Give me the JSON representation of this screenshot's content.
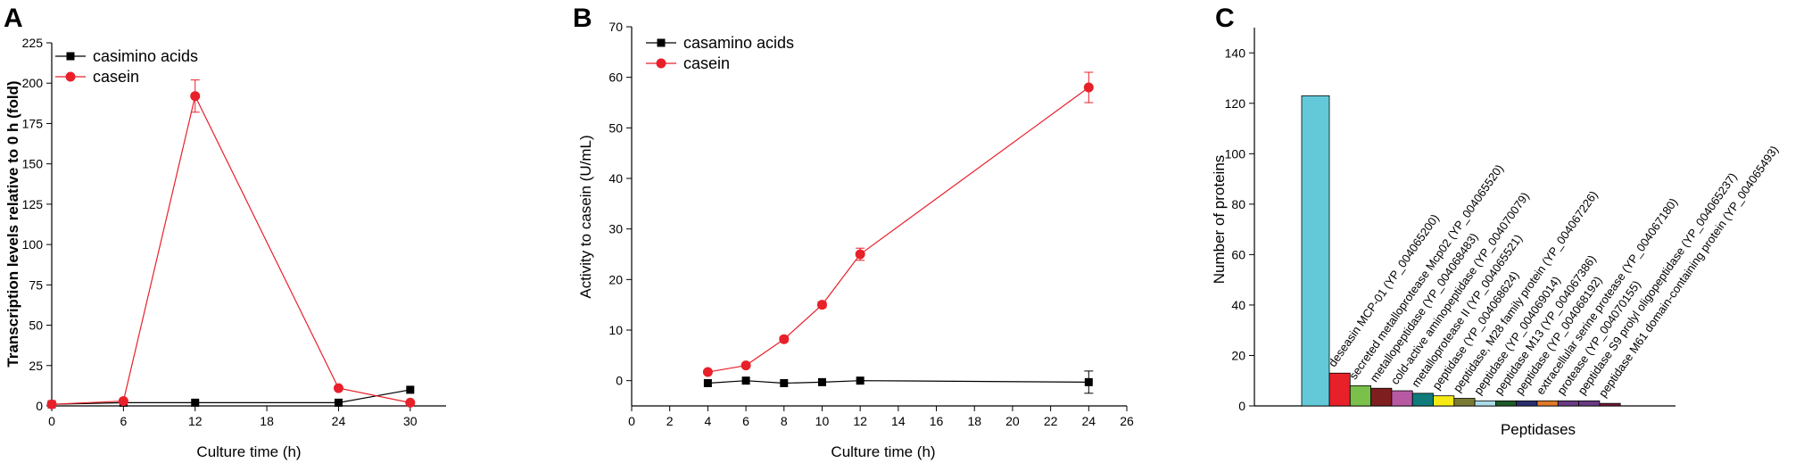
{
  "chart_data": [
    {
      "panel": "A",
      "type": "line",
      "xlabel": "Culture time (h)",
      "ylabel": "Transcription levels relative to 0 h (fold)",
      "xlim": [
        0,
        33
      ],
      "ylim": [
        0,
        225
      ],
      "xticks": [
        0,
        6,
        12,
        18,
        24,
        30
      ],
      "yticks": [
        0,
        25,
        50,
        75,
        100,
        125,
        150,
        175,
        200,
        225
      ],
      "legend_position": "top-left",
      "series": [
        {
          "name": "casimino acids",
          "color": "#000000",
          "marker": "square",
          "x": [
            0,
            6,
            12,
            24,
            30
          ],
          "y": [
            1,
            2,
            2,
            2,
            10
          ],
          "err": [
            0,
            0,
            0,
            0,
            0
          ]
        },
        {
          "name": "casein",
          "color": "#e8202a",
          "marker": "circle",
          "x": [
            0,
            6,
            12,
            24,
            30
          ],
          "y": [
            1,
            3,
            192,
            11,
            2
          ],
          "err": [
            0,
            0,
            10,
            0,
            0
          ]
        }
      ]
    },
    {
      "panel": "B",
      "type": "line",
      "xlabel": "Culture time (h)",
      "ylabel": "Activity to casein (U/mL)",
      "xlim": [
        0,
        26
      ],
      "ylim": [
        -5,
        70
      ],
      "xticks": [
        0,
        2,
        4,
        6,
        8,
        10,
        12,
        14,
        16,
        18,
        20,
        22,
        24,
        26
      ],
      "yticks": [
        0,
        10,
        20,
        30,
        40,
        50,
        60,
        70
      ],
      "legend_position": "top-left",
      "series": [
        {
          "name": "casamino acids",
          "color": "#000000",
          "marker": "square",
          "x": [
            4,
            6,
            8,
            10,
            12,
            24
          ],
          "y": [
            -0.5,
            0,
            -0.5,
            -0.3,
            0,
            -0.3
          ],
          "err": [
            0,
            0,
            0,
            0,
            0,
            2.2
          ]
        },
        {
          "name": "casein",
          "color": "#e8202a",
          "marker": "circle",
          "x": [
            4,
            6,
            8,
            10,
            12,
            24
          ],
          "y": [
            1.7,
            3,
            8.2,
            15,
            25,
            58
          ],
          "err": [
            0,
            0,
            0.5,
            0.6,
            1.2,
            3
          ]
        }
      ]
    },
    {
      "panel": "C",
      "type": "bar",
      "xlabel": "Peptidases",
      "ylabel": "Number of proteins",
      "ylim": [
        0,
        150
      ],
      "yticks": [
        0,
        20,
        40,
        60,
        80,
        100,
        120,
        140
      ],
      "categories": [
        "",
        "deseasin MCP-01 (YP_004065200)",
        "secreted metalloprotease Mcp02 (YP_004065520)",
        "metallopeptidase (YP_004068483)",
        "cold-active aminopeptidase (YP_004070079)",
        "metalloprotease II (YP_004065521)",
        "peptidase (YP_004068624)",
        "peptidase, M28 family protein (YP_004067226)",
        "peptidase (YP_004069014)",
        "peptidase M13 (YP_004067386)",
        "peptidase (YP_004068192)",
        "extracellular serine protease (YP_004067180)",
        "protease (YP_004070155)",
        "peptidase S9 prolyl oligopeptidase (YP_004065237)",
        "peptidase M61 domain-containing protein (YP_004065493)"
      ],
      "values": [
        123,
        13,
        8,
        7,
        6,
        5,
        4,
        3,
        2,
        2,
        2,
        2,
        2,
        2,
        1
      ],
      "colors": [
        "#63c9d9",
        "#e8202a",
        "#7bc04a",
        "#7f1e1e",
        "#b859a4",
        "#0f7b7b",
        "#f5ea14",
        "#7a7a35",
        "#a9dce8",
        "#1e5a2a",
        "#2b2f6e",
        "#e07a2a",
        "#6a3b84",
        "#6a3b84",
        "#7a1a3a"
      ]
    }
  ]
}
